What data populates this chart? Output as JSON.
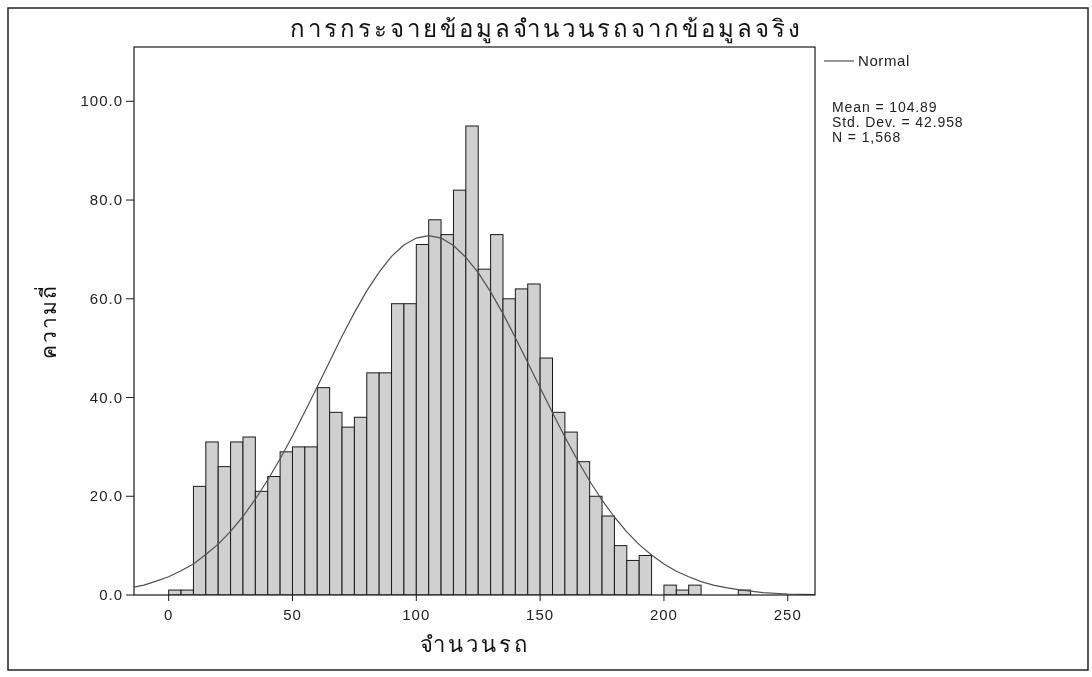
{
  "chart_data": {
    "type": "histogram",
    "title": "การกระจายข้อมูลจำนวนรถจากข้อมูลจริง",
    "xlabel": "จำนวนรถ",
    "ylabel": "ความถี่",
    "bins": [
      0,
      5,
      10,
      15,
      20,
      25,
      30,
      35,
      40,
      45,
      50,
      55,
      60,
      65,
      70,
      75,
      80,
      85,
      90,
      95,
      100,
      105,
      110,
      115,
      120,
      125,
      130,
      135,
      140,
      145,
      150,
      155,
      160,
      165,
      170,
      175,
      180,
      185,
      190,
      195,
      200,
      205,
      210,
      215,
      220,
      225,
      230,
      235
    ],
    "series": [
      {
        "color": "#d0d0d0",
        "values": [
          1,
          1,
          22,
          31,
          26,
          31,
          32,
          21,
          24,
          29,
          30,
          30,
          42,
          37,
          34,
          36,
          45,
          45,
          59,
          59,
          71,
          76,
          73,
          82,
          95,
          66,
          73,
          60,
          62,
          63,
          48,
          37,
          33,
          27,
          20,
          16,
          10,
          7,
          8,
          0,
          2,
          1,
          2,
          0,
          0,
          0,
          1
        ]
      },
      {
        "type": "line",
        "name": "Normal",
        "color": "#505050",
        "x": [
          -14,
          -10,
          -5,
          0,
          5,
          10,
          15,
          20,
          25,
          30,
          35,
          40,
          45,
          50,
          55,
          60,
          65,
          70,
          75,
          80,
          85,
          90,
          95,
          100,
          105,
          110,
          115,
          120,
          125,
          130,
          135,
          140,
          145,
          150,
          155,
          160,
          165,
          170,
          175,
          180,
          185,
          190,
          195,
          200,
          205,
          210,
          215,
          220,
          225,
          230,
          240,
          250,
          261
        ],
        "values": [
          1.6,
          2.0,
          2.8,
          3.7,
          4.9,
          6.3,
          8.2,
          10.3,
          12.9,
          15.9,
          19.4,
          23.3,
          27.6,
          32.2,
          37.1,
          42.2,
          47.3,
          52.4,
          57.2,
          61.6,
          65.4,
          68.6,
          70.9,
          72.3,
          72.8,
          72.3,
          70.8,
          68.4,
          65.3,
          61.4,
          57.0,
          52.1,
          47.1,
          42.0,
          36.9,
          32.0,
          27.4,
          23.1,
          19.2,
          15.8,
          12.8,
          10.2,
          8.1,
          6.3,
          4.8,
          3.7,
          2.7,
          2.0,
          1.5,
          1.1,
          0.5,
          0.2,
          0.1
        ]
      }
    ],
    "xlim": [
      -14,
      261
    ],
    "ylim": [
      0,
      111
    ],
    "xticks": [
      0,
      50,
      100,
      150,
      200,
      250
    ],
    "yticks": [
      {
        "value": 0,
        "label": "0.0"
      },
      {
        "value": 20,
        "label": "20.0"
      },
      {
        "value": 40,
        "label": "40.0"
      },
      {
        "value": 60,
        "label": "60.0"
      },
      {
        "value": 80,
        "label": "80.0"
      },
      {
        "value": 100,
        "label": "100.0"
      }
    ],
    "legend": "top right",
    "annotations": [
      "Mean = 104.89",
      "Std. Dev. = 42.958",
      "N = 1,568"
    ]
  }
}
